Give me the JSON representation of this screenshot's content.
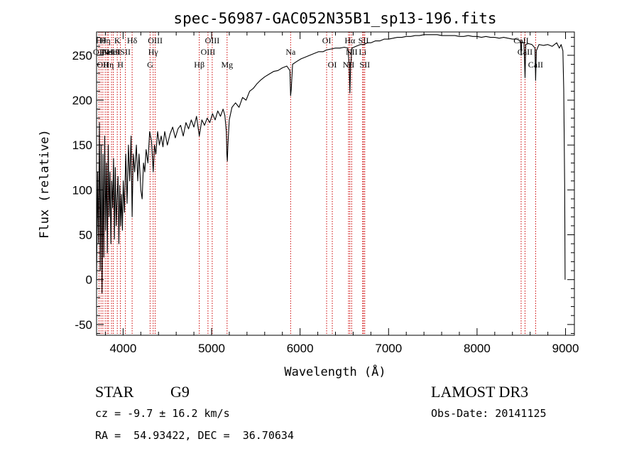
{
  "chart_data": {
    "type": "line",
    "title": "spec-56987-GAC052N35B1_sp13-196.fits",
    "xlabel": "Wavelength (Å)",
    "ylabel": "Flux (relative)",
    "xlim": [
      3700,
      9100
    ],
    "ylim": [
      -62,
      276
    ],
    "x_ticks": [
      4000,
      5000,
      6000,
      7000,
      8000,
      9000
    ],
    "y_ticks": [
      -50,
      0,
      50,
      100,
      150,
      200,
      250
    ],
    "series": [
      {
        "name": "flux",
        "color": "#000000",
        "points": [
          [
            3700,
            0
          ],
          [
            3712,
            120
          ],
          [
            3722,
            40
          ],
          [
            3732,
            175
          ],
          [
            3742,
            10
          ],
          [
            3752,
            150
          ],
          [
            3762,
            -15
          ],
          [
            3772,
            140
          ],
          [
            3782,
            25
          ],
          [
            3792,
            160
          ],
          [
            3802,
            55
          ],
          [
            3812,
            130
          ],
          [
            3822,
            30
          ],
          [
            3832,
            150
          ],
          [
            3842,
            70
          ],
          [
            3852,
            120
          ],
          [
            3862,
            40
          ],
          [
            3872,
            110
          ],
          [
            3882,
            80
          ],
          [
            3892,
            135
          ],
          [
            3902,
            45
          ],
          [
            3912,
            125
          ],
          [
            3922,
            60
          ],
          [
            3932,
            90
          ],
          [
            3942,
            115
          ],
          [
            3952,
            40
          ],
          [
            3962,
            105
          ],
          [
            3972,
            60
          ],
          [
            3982,
            95
          ],
          [
            3992,
            55
          ],
          [
            4002,
            110
          ],
          [
            4015,
            75
          ],
          [
            4030,
            140
          ],
          [
            4045,
            85
          ],
          [
            4060,
            150
          ],
          [
            4075,
            110
          ],
          [
            4090,
            160
          ],
          [
            4102,
            70
          ],
          [
            4115,
            140
          ],
          [
            4130,
            120
          ],
          [
            4150,
            150
          ],
          [
            4165,
            110
          ],
          [
            4180,
            140
          ],
          [
            4200,
            100
          ],
          [
            4215,
            90
          ],
          [
            4230,
            130
          ],
          [
            4245,
            120
          ],
          [
            4260,
            145
          ],
          [
            4280,
            130
          ],
          [
            4300,
            165
          ],
          [
            4320,
            155
          ],
          [
            4340,
            120
          ],
          [
            4355,
            150
          ],
          [
            4370,
            140
          ],
          [
            4390,
            165
          ],
          [
            4410,
            150
          ],
          [
            4430,
            160
          ],
          [
            4450,
            148
          ],
          [
            4470,
            165
          ],
          [
            4500,
            150
          ],
          [
            4530,
            162
          ],
          [
            4560,
            170
          ],
          [
            4590,
            158
          ],
          [
            4620,
            168
          ],
          [
            4650,
            172
          ],
          [
            4680,
            160
          ],
          [
            4710,
            175
          ],
          [
            4740,
            168
          ],
          [
            4770,
            178
          ],
          [
            4800,
            170
          ],
          [
            4830,
            182
          ],
          [
            4861,
            160
          ],
          [
            4890,
            178
          ],
          [
            4920,
            172
          ],
          [
            4950,
            180
          ],
          [
            4980,
            175
          ],
          [
            5010,
            185
          ],
          [
            5040,
            178
          ],
          [
            5070,
            188
          ],
          [
            5100,
            182
          ],
          [
            5130,
            190
          ],
          [
            5150,
            183
          ],
          [
            5167,
            165
          ],
          [
            5172,
            140
          ],
          [
            5178,
            132
          ],
          [
            5184,
            150
          ],
          [
            5200,
            178
          ],
          [
            5230,
            192
          ],
          [
            5270,
            197
          ],
          [
            5310,
            192
          ],
          [
            5350,
            203
          ],
          [
            5390,
            200
          ],
          [
            5430,
            210
          ],
          [
            5470,
            213
          ],
          [
            5510,
            218
          ],
          [
            5550,
            222
          ],
          [
            5600,
            226
          ],
          [
            5650,
            229
          ],
          [
            5700,
            232
          ],
          [
            5750,
            233
          ],
          [
            5800,
            236
          ],
          [
            5850,
            238
          ],
          [
            5885,
            233
          ],
          [
            5893,
            205
          ],
          [
            5900,
            212
          ],
          [
            5915,
            240
          ],
          [
            5960,
            243
          ],
          [
            6010,
            246
          ],
          [
            6060,
            248
          ],
          [
            6110,
            250
          ],
          [
            6160,
            252
          ],
          [
            6210,
            254
          ],
          [
            6260,
            254
          ],
          [
            6300,
            256
          ],
          [
            6350,
            257
          ],
          [
            6400,
            258
          ],
          [
            6450,
            258
          ],
          [
            6500,
            259
          ],
          [
            6540,
            258
          ],
          [
            6555,
            240
          ],
          [
            6563,
            208
          ],
          [
            6570,
            235
          ],
          [
            6585,
            258
          ],
          [
            6630,
            260
          ],
          [
            6680,
            262
          ],
          [
            6720,
            262
          ],
          [
            6760,
            264
          ],
          [
            6800,
            264
          ],
          [
            6850,
            266
          ],
          [
            6900,
            266
          ],
          [
            6950,
            268
          ],
          [
            7000,
            268
          ],
          [
            7050,
            269
          ],
          [
            7100,
            270
          ],
          [
            7150,
            270
          ],
          [
            7200,
            271
          ],
          [
            7250,
            271
          ],
          [
            7300,
            272
          ],
          [
            7350,
            272
          ],
          [
            7400,
            273
          ],
          [
            7450,
            273
          ],
          [
            7500,
            273
          ],
          [
            7550,
            273
          ],
          [
            7600,
            272
          ],
          [
            7650,
            272
          ],
          [
            7700,
            272
          ],
          [
            7750,
            272
          ],
          [
            7800,
            271
          ],
          [
            7850,
            271
          ],
          [
            7900,
            272
          ],
          [
            7950,
            271
          ],
          [
            8000,
            271
          ],
          [
            8050,
            270
          ],
          [
            8100,
            271
          ],
          [
            8150,
            270
          ],
          [
            8200,
            270
          ],
          [
            8250,
            269
          ],
          [
            8300,
            270
          ],
          [
            8350,
            269
          ],
          [
            8400,
            268
          ],
          [
            8450,
            268
          ],
          [
            8490,
            266
          ],
          [
            8498,
            250
          ],
          [
            8505,
            265
          ],
          [
            8530,
            264
          ],
          [
            8542,
            225
          ],
          [
            8550,
            262
          ],
          [
            8580,
            263
          ],
          [
            8620,
            262
          ],
          [
            8655,
            258
          ],
          [
            8662,
            222
          ],
          [
            8670,
            255
          ],
          [
            8700,
            262
          ],
          [
            8750,
            261
          ],
          [
            8800,
            262
          ],
          [
            8850,
            260
          ],
          [
            8900,
            264
          ],
          [
            8930,
            258
          ],
          [
            8950,
            262
          ],
          [
            8970,
            255
          ],
          [
            8980,
            212
          ],
          [
            8990,
            105
          ],
          [
            8995,
            0
          ]
        ]
      }
    ],
    "lines": [
      {
        "x": 3727,
        "label": "OII",
        "row": 2
      },
      {
        "x": 3750,
        "label": "Hθ",
        "row": 1
      },
      {
        "x": 3771,
        "label": "OII",
        "row": 3
      },
      {
        "x": 3798,
        "label": "Hη",
        "row": 1
      },
      {
        "x": 3820,
        "label": "HeI",
        "row": 2
      },
      {
        "x": 3835,
        "label": "Hη",
        "row": 3
      },
      {
        "x": 3869,
        "label": "NeIII",
        "row": 2
      },
      {
        "x": 3889,
        "label": "HeI",
        "row": 2
      },
      {
        "x": 3934,
        "label": "K",
        "row": 1
      },
      {
        "x": 3969,
        "label": "H",
        "row": 3
      },
      {
        "x": 4026,
        "label": "SII",
        "row": 2
      },
      {
        "x": 4102,
        "label": "Hδ",
        "row": 1
      },
      {
        "x": 4305,
        "label": "G",
        "row": 3
      },
      {
        "x": 4340,
        "label": "Hγ",
        "row": 2
      },
      {
        "x": 4363,
        "label": "OIII",
        "row": 1
      },
      {
        "x": 4861,
        "label": "Hβ",
        "row": 3
      },
      {
        "x": 4959,
        "label": "OIII",
        "row": 2
      },
      {
        "x": 5007,
        "label": "OIII",
        "row": 1
      },
      {
        "x": 5175,
        "label": "Mg",
        "row": 3
      },
      {
        "x": 5893,
        "label": "Na",
        "row": 2
      },
      {
        "x": 6300,
        "label": "OI",
        "row": 1
      },
      {
        "x": 6364,
        "label": "OI",
        "row": 3
      },
      {
        "x": 6548,
        "label": "NII",
        "row": 3
      },
      {
        "x": 6563,
        "label": "Hα",
        "row": 1
      },
      {
        "x": 6583,
        "label": "NII",
        "row": 2
      },
      {
        "x": 6707,
        "label": "Li",
        "row": 2
      },
      {
        "x": 6717,
        "label": "SII",
        "row": 1
      },
      {
        "x": 6731,
        "label": "SII",
        "row": 3
      },
      {
        "x": 8498,
        "label": "CaII",
        "row": 1
      },
      {
        "x": 8542,
        "label": "CaII",
        "row": 2
      },
      {
        "x": 8662,
        "label": "CaII",
        "row": 3
      }
    ],
    "line_color": "#cc0000"
  },
  "info": {
    "object_type": "STAR",
    "subclass": "G9",
    "survey": "LAMOST DR3",
    "cz": "cz = -9.7 ± 16.2 km/s",
    "obs_date": "Obs-Date: 20141125",
    "coords": "RA =  54.93422, DEC =  36.70634"
  }
}
